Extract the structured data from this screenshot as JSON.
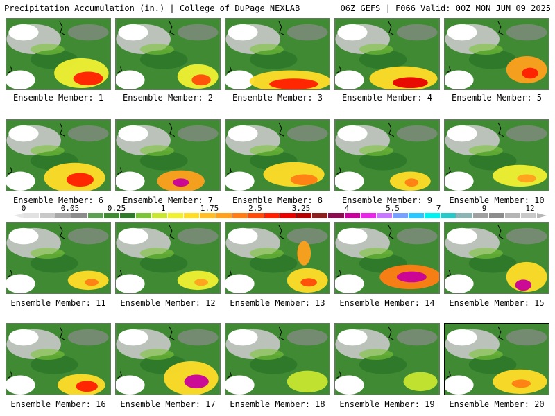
{
  "header": {
    "title_left": "Precipitation Accumulation (in.) | College of DuPage NEXLAB",
    "title_right": "06Z GEFS | F066 Valid: 00Z MON JUN 09 2025"
  },
  "colorbar": {
    "tick_labels": [
      "0",
      "0.05",
      "0.25",
      "1",
      "1.75",
      "2.5",
      "3.25",
      "4",
      "5.5",
      "7",
      "9",
      "12"
    ],
    "colors": [
      "#e1e1e1",
      "#c8c8c8",
      "#a8a8a8",
      "#8c8c8c",
      "#5f9f55",
      "#3f8a33",
      "#2f7a2a",
      "#7dc43a",
      "#c8e632",
      "#f0f032",
      "#ffdc28",
      "#ffbe28",
      "#ffa01e",
      "#ff7d14",
      "#ff4b0a",
      "#ff1e00",
      "#e60000",
      "#b40000",
      "#8c1e1e",
      "#8c0a50",
      "#c8009b",
      "#e628e6",
      "#c878ff",
      "#78a0ff",
      "#28c8ff",
      "#00f0f0",
      "#28c8c8",
      "#8cb4b4",
      "#a0a0a0",
      "#8c8c8c",
      "#b4b4b4",
      "#c8c8c8"
    ]
  },
  "panels": [
    {
      "label": "Ensemble Member: 1"
    },
    {
      "label": "Ensemble Member: 2"
    },
    {
      "label": "Ensemble Member: 3"
    },
    {
      "label": "Ensemble Member: 4"
    },
    {
      "label": "Ensemble Member: 5"
    },
    {
      "label": "Ensemble Member: 6"
    },
    {
      "label": "Ensemble Member: 7"
    },
    {
      "label": "Ensemble Member: 8"
    },
    {
      "label": "Ensemble Member: 9"
    },
    {
      "label": "Ensemble Member: 10"
    },
    {
      "label": "Ensemble Member: 11"
    },
    {
      "label": "Ensemble Member: 12"
    },
    {
      "label": "Ensemble Member: 13"
    },
    {
      "label": "Ensemble Member: 14"
    },
    {
      "label": "Ensemble Member: 15"
    },
    {
      "label": "Ensemble Member: 16"
    },
    {
      "label": "Ensemble Member: 17"
    },
    {
      "label": "Ensemble Member: 18"
    },
    {
      "label": "Ensemble Member: 19"
    },
    {
      "label": "Ensemble Member: 20"
    }
  ]
}
